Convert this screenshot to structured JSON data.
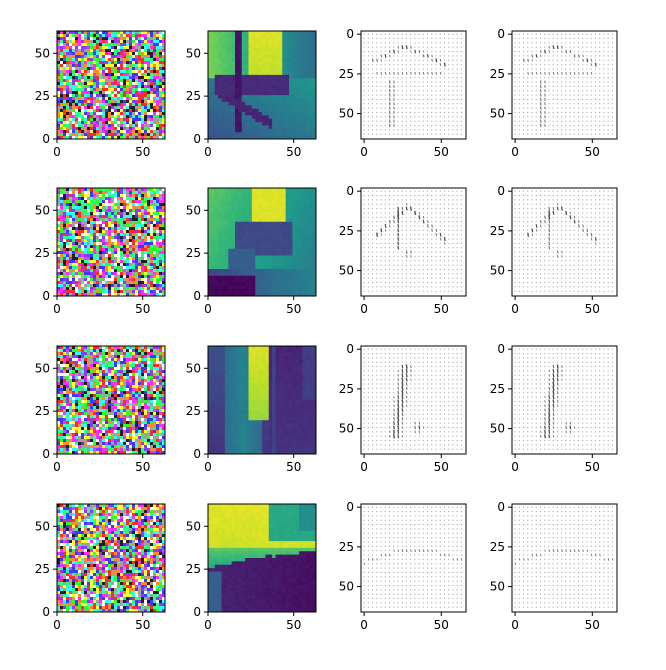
{
  "figure": {
    "rows": 4,
    "columns": 4
  },
  "chart_data": [
    {
      "panel": "row-1-noise",
      "type": "heatmap",
      "image": "random RGB noise",
      "xlim": [
        0,
        63
      ],
      "ylim": [
        63,
        0
      ],
      "xticks": [
        0,
        50
      ],
      "yticks": [
        0,
        25,
        50
      ]
    },
    {
      "panel": "row-1-depth",
      "type": "heatmap",
      "image": "depth map (viridis)",
      "colormap": "viridis",
      "xlim": [
        0,
        63
      ],
      "ylim": [
        63,
        0
      ],
      "xticks": [
        0,
        50
      ],
      "yticks": [
        0,
        25,
        50
      ]
    },
    {
      "panel": "row-1-field-a",
      "type": "scatter",
      "image": "gray vector field",
      "xlim": [
        -2,
        66
      ],
      "ylim": [
        -2,
        66
      ],
      "xticks": [
        0,
        50
      ],
      "yticks": [
        0,
        25,
        50
      ]
    },
    {
      "panel": "row-1-field-b",
      "type": "scatter",
      "image": "gray vector field",
      "xlim": [
        -2,
        66
      ],
      "ylim": [
        -2,
        66
      ],
      "xticks": [
        0,
        50
      ],
      "yticks": [
        0,
        25,
        50
      ]
    },
    {
      "panel": "row-2-noise",
      "type": "heatmap",
      "image": "random RGB noise",
      "xlim": [
        0,
        63
      ],
      "ylim": [
        63,
        0
      ],
      "xticks": [
        0,
        50
      ],
      "yticks": [
        0,
        25,
        50
      ]
    },
    {
      "panel": "row-2-depth",
      "type": "heatmap",
      "image": "depth map (viridis)",
      "colormap": "viridis",
      "xlim": [
        0,
        63
      ],
      "ylim": [
        63,
        0
      ],
      "xticks": [
        0,
        50
      ],
      "yticks": [
        0,
        25,
        50
      ]
    },
    {
      "panel": "row-2-field-a",
      "type": "scatter",
      "image": "gray vector field",
      "xlim": [
        -2,
        66
      ],
      "ylim": [
        -2,
        66
      ],
      "xticks": [
        0,
        50
      ],
      "yticks": [
        0,
        25,
        50
      ]
    },
    {
      "panel": "row-2-field-b",
      "type": "scatter",
      "image": "gray vector field",
      "xlim": [
        -2,
        66
      ],
      "ylim": [
        -2,
        66
      ],
      "xticks": [
        0,
        50
      ],
      "yticks": [
        0,
        25,
        50
      ]
    },
    {
      "panel": "row-3-noise",
      "type": "heatmap",
      "image": "random RGB noise",
      "xlim": [
        0,
        63
      ],
      "ylim": [
        63,
        0
      ],
      "xticks": [
        0,
        50
      ],
      "yticks": [
        0,
        25,
        50
      ]
    },
    {
      "panel": "row-3-depth",
      "type": "heatmap",
      "image": "depth map (viridis)",
      "colormap": "viridis",
      "xlim": [
        0,
        63
      ],
      "ylim": [
        63,
        0
      ],
      "xticks": [
        0,
        50
      ],
      "yticks": [
        0,
        25,
        50
      ]
    },
    {
      "panel": "row-3-field-a",
      "type": "scatter",
      "image": "gray vector field",
      "xlim": [
        -2,
        66
      ],
      "ylim": [
        -2,
        66
      ],
      "xticks": [
        0,
        50
      ],
      "yticks": [
        0,
        25,
        50
      ]
    },
    {
      "panel": "row-3-field-b",
      "type": "scatter",
      "image": "gray vector field",
      "xlim": [
        -2,
        66
      ],
      "ylim": [
        -2,
        66
      ],
      "xticks": [
        0,
        50
      ],
      "yticks": [
        0,
        25,
        50
      ]
    },
    {
      "panel": "row-4-noise",
      "type": "heatmap",
      "image": "random RGB noise",
      "xlim": [
        0,
        63
      ],
      "ylim": [
        63,
        0
      ],
      "xticks": [
        0,
        50
      ],
      "yticks": [
        0,
        25,
        50
      ]
    },
    {
      "panel": "row-4-depth",
      "type": "heatmap",
      "image": "depth map (viridis)",
      "colormap": "viridis",
      "xlim": [
        0,
        63
      ],
      "ylim": [
        63,
        0
      ],
      "xticks": [
        0,
        50
      ],
      "yticks": [
        0,
        25,
        50
      ]
    },
    {
      "panel": "row-4-field-a",
      "type": "scatter",
      "image": "gray vector field",
      "xlim": [
        -2,
        66
      ],
      "ylim": [
        -2,
        66
      ],
      "xticks": [
        0,
        50
      ],
      "yticks": [
        0,
        25,
        50
      ]
    },
    {
      "panel": "row-4-field-b",
      "type": "scatter",
      "image": "gray vector field",
      "xlim": [
        -2,
        66
      ],
      "ylim": [
        -2,
        66
      ],
      "xticks": [
        0,
        50
      ],
      "yticks": [
        0,
        25,
        50
      ]
    }
  ],
  "colors": {
    "axes": "#000000",
    "background": "#ffffff",
    "field_dots": "#9a9a9a",
    "field_dark": "#505050",
    "viridis_low": "#440154",
    "viridis_mid": "#21918c",
    "viridis_high": "#fde725"
  }
}
